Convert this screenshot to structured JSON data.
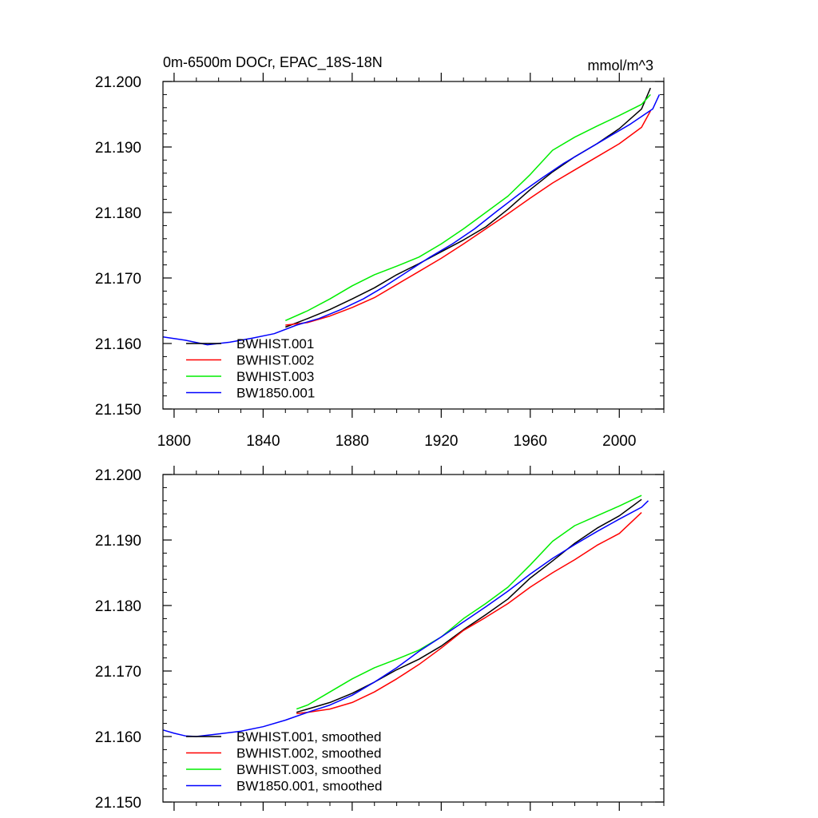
{
  "chart_data": [
    {
      "type": "line",
      "title": "0m-6500m DOCr, EPAC_18S-18N",
      "units": "mmol/m^3",
      "xlim": [
        1795,
        2020
      ],
      "ylim": [
        21.15,
        21.2
      ],
      "xticks": [
        1800,
        1840,
        1880,
        1920,
        1960,
        2000
      ],
      "xtick_labels": [
        "1800",
        "1840",
        "1880",
        "1920",
        "1960",
        "2000"
      ],
      "yticks": [
        21.15,
        21.16,
        21.17,
        21.18,
        21.19,
        21.2
      ],
      "ytick_labels": [
        "21.150",
        "21.160",
        "21.170",
        "21.180",
        "21.190",
        "21.200"
      ],
      "legend_position": "bottom-left",
      "series": [
        {
          "name": "BWHIST.001",
          "color": "#000000",
          "x": [
            1850,
            1860,
            1870,
            1880,
            1890,
            1900,
            1910,
            1920,
            1930,
            1940,
            1950,
            1960,
            1970,
            1980,
            1990,
            2000,
            2010,
            2014
          ],
          "values": [
            21.1625,
            21.1638,
            21.1652,
            21.1668,
            21.1685,
            21.1705,
            21.1722,
            21.174,
            21.1758,
            21.1778,
            21.1805,
            21.1835,
            21.1862,
            21.1885,
            21.1905,
            21.1928,
            21.1958,
            21.199
          ]
        },
        {
          "name": "BWHIST.002",
          "color": "#ff0000",
          "x": [
            1850,
            1860,
            1870,
            1880,
            1890,
            1900,
            1910,
            1920,
            1930,
            1940,
            1950,
            1960,
            1970,
            1980,
            1990,
            2000,
            2010,
            2014
          ],
          "values": [
            21.1628,
            21.1632,
            21.1642,
            21.1655,
            21.167,
            21.169,
            21.171,
            21.173,
            21.1752,
            21.1775,
            21.1798,
            21.1822,
            21.1845,
            21.1865,
            21.1885,
            21.1905,
            21.193,
            21.1955
          ]
        },
        {
          "name": "BWHIST.003",
          "color": "#00ee00",
          "x": [
            1850,
            1860,
            1870,
            1880,
            1890,
            1900,
            1910,
            1920,
            1930,
            1940,
            1950,
            1960,
            1970,
            1980,
            1990,
            2000,
            2010,
            2014
          ],
          "values": [
            21.1635,
            21.165,
            21.1668,
            21.1688,
            21.1705,
            21.1718,
            21.1732,
            21.1752,
            21.1775,
            21.18,
            21.1825,
            21.1858,
            21.1895,
            21.1915,
            21.1932,
            21.1948,
            21.1965,
            21.198
          ]
        },
        {
          "name": "BW1850.001",
          "color": "#0000ff",
          "x": [
            1795,
            1805,
            1815,
            1825,
            1835,
            1845,
            1855,
            1865,
            1875,
            1885,
            1895,
            1905,
            1915,
            1925,
            1935,
            1945,
            1955,
            1965,
            1975,
            1985,
            1995,
            2005,
            2015,
            2018
          ],
          "values": [
            21.161,
            21.1605,
            21.1598,
            21.1602,
            21.1608,
            21.1615,
            21.1628,
            21.1638,
            21.1652,
            21.1668,
            21.1688,
            21.171,
            21.1732,
            21.1752,
            21.1775,
            21.1802,
            21.1828,
            21.1852,
            21.1875,
            21.1895,
            21.1915,
            21.1935,
            21.1958,
            21.198
          ]
        }
      ]
    },
    {
      "type": "line",
      "title": "",
      "xlim": [
        1795,
        2020
      ],
      "ylim": [
        21.15,
        21.2
      ],
      "xticks": [
        1800,
        1840,
        1880,
        1920,
        1960,
        2000
      ],
      "yticks": [
        21.15,
        21.16,
        21.17,
        21.18,
        21.19,
        21.2
      ],
      "ytick_labels": [
        "21.150",
        "21.160",
        "21.170",
        "21.180",
        "21.190",
        "21.200"
      ],
      "legend_position": "bottom-left",
      "series": [
        {
          "name": "BWHIST.001, smoothed",
          "color": "#000000",
          "x": [
            1855,
            1860,
            1870,
            1880,
            1890,
            1900,
            1910,
            1920,
            1930,
            1940,
            1950,
            1960,
            1970,
            1980,
            1990,
            2000,
            2010
          ],
          "values": [
            21.1637,
            21.1642,
            21.1652,
            21.1666,
            21.1683,
            21.1702,
            21.1718,
            21.1738,
            21.1763,
            21.1786,
            21.181,
            21.1842,
            21.1868,
            21.1895,
            21.1918,
            21.1937,
            21.1962
          ]
        },
        {
          "name": "BWHIST.002, smoothed",
          "color": "#ff0000",
          "x": [
            1855,
            1860,
            1870,
            1880,
            1890,
            1900,
            1910,
            1920,
            1930,
            1940,
            1950,
            1960,
            1970,
            1980,
            1990,
            2000,
            2010
          ],
          "values": [
            21.1635,
            21.1637,
            21.1642,
            21.1652,
            21.1668,
            21.1688,
            21.171,
            21.1735,
            21.1762,
            21.1782,
            21.1803,
            21.1828,
            21.185,
            21.187,
            21.1892,
            21.191,
            21.1942
          ]
        },
        {
          "name": "BWHIST.003, smoothed",
          "color": "#00ee00",
          "x": [
            1855,
            1860,
            1870,
            1880,
            1890,
            1900,
            1910,
            1920,
            1930,
            1940,
            1950,
            1960,
            1970,
            1980,
            1990,
            2000,
            2010
          ],
          "values": [
            21.1642,
            21.1648,
            21.1668,
            21.1688,
            21.1705,
            21.1718,
            21.1732,
            21.1752,
            21.178,
            21.1803,
            21.1828,
            21.1862,
            21.1898,
            21.1922,
            21.1937,
            21.1952,
            21.1968
          ]
        },
        {
          "name": "BW1850.001, smoothed",
          "color": "#0000ff",
          "x": [
            1795,
            1800,
            1805,
            1810,
            1820,
            1830,
            1840,
            1850,
            1860,
            1870,
            1880,
            1890,
            1900,
            1910,
            1920,
            1930,
            1940,
            1950,
            1960,
            1970,
            1980,
            1990,
            2000,
            2010,
            2013
          ],
          "values": [
            21.161,
            21.1605,
            21.1601,
            21.16,
            21.1604,
            21.1608,
            21.1615,
            21.1625,
            21.1637,
            21.1648,
            21.1663,
            21.1683,
            21.1705,
            21.173,
            21.1752,
            21.1775,
            21.1798,
            21.1822,
            21.1848,
            21.1872,
            21.1893,
            21.1913,
            21.1932,
            21.195,
            21.196
          ]
        }
      ]
    }
  ]
}
